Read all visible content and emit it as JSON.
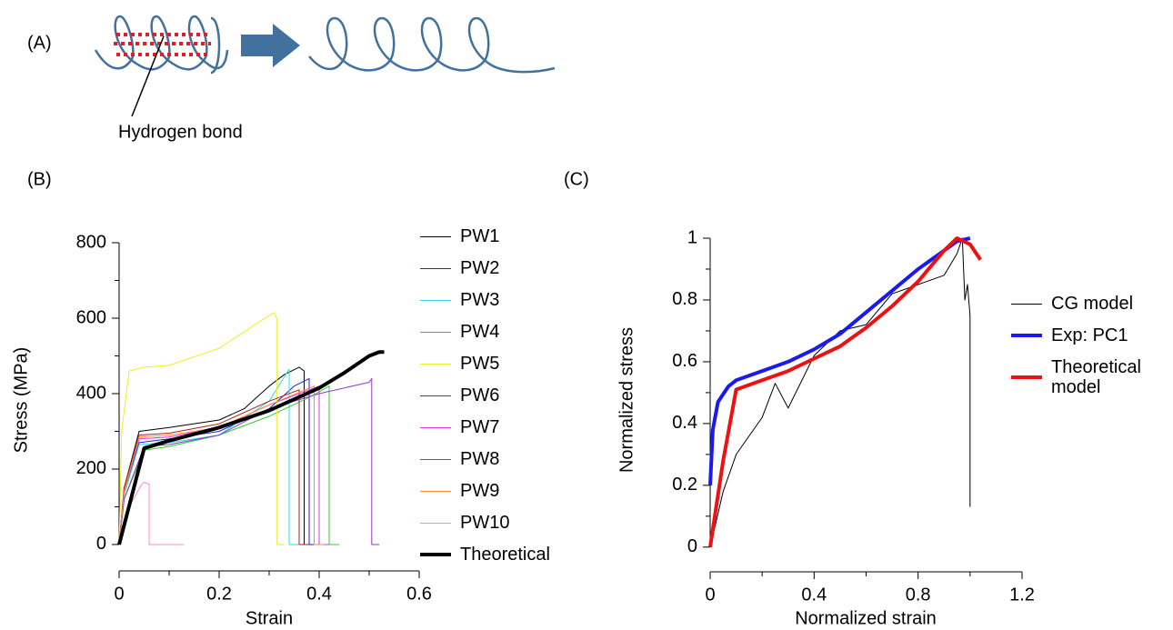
{
  "diagram": {
    "label": "(A)",
    "annotation": "Hydrogen bond"
  },
  "chart_data": [
    {
      "type": "line",
      "label": "(B)",
      "x_label": "Strain",
      "y_label": "Stress (MPa)",
      "xlim": [
        0,
        0.6
      ],
      "xticks": [
        0,
        0.2,
        0.4,
        0.6
      ],
      "ylim": [
        -70,
        800
      ],
      "yticks": [
        0,
        200,
        400,
        600,
        800
      ],
      "series": [
        {
          "name": "PW1",
          "color": "#000000",
          "line_width": 1,
          "x": [
            0,
            0.01,
            0.04,
            0.1,
            0.2,
            0.25,
            0.3,
            0.33,
            0.36,
            0.37,
            0.37,
            0.4
          ],
          "values": [
            0,
            150,
            300,
            310,
            330,
            360,
            420,
            450,
            470,
            460,
            0,
            0
          ]
        },
        {
          "name": "PW2",
          "color": "#2222dd",
          "line_width": 1,
          "x": [
            0,
            0.01,
            0.04,
            0.1,
            0.2,
            0.3,
            0.35,
            0.38,
            0.38,
            0.41
          ],
          "values": [
            0,
            140,
            270,
            280,
            300,
            360,
            420,
            440,
            0,
            0
          ]
        },
        {
          "name": "PW3",
          "color": "#33dddd",
          "line_width": 1,
          "x": [
            0,
            0.01,
            0.04,
            0.1,
            0.2,
            0.3,
            0.34,
            0.34,
            0.36
          ],
          "values": [
            0,
            130,
            265,
            270,
            290,
            380,
            465,
            0,
            0
          ]
        },
        {
          "name": "PW4",
          "color": "#33cc33",
          "line_width": 1,
          "x": [
            0,
            0.01,
            0.05,
            0.1,
            0.2,
            0.3,
            0.38,
            0.42,
            0.42,
            0.44
          ],
          "values": [
            0,
            120,
            250,
            260,
            290,
            340,
            390,
            420,
            0,
            0
          ]
        },
        {
          "name": "PW5",
          "color": "#eeee22",
          "line_width": 1,
          "x": [
            0,
            0.005,
            0.02,
            0.05,
            0.1,
            0.2,
            0.28,
            0.31,
            0.315,
            0.315,
            0.33
          ],
          "values": [
            0,
            300,
            460,
            470,
            475,
            520,
            590,
            615,
            600,
            0,
            0
          ]
        },
        {
          "name": "PW6",
          "color": "#aa2222",
          "line_width": 1,
          "x": [
            0,
            0.01,
            0.04,
            0.1,
            0.2,
            0.3,
            0.36,
            0.36,
            0.38
          ],
          "values": [
            0,
            150,
            290,
            295,
            320,
            380,
            410,
            0,
            0
          ]
        },
        {
          "name": "PW7",
          "color": "#dd33dd",
          "line_width": 1,
          "x": [
            0,
            0.01,
            0.04,
            0.1,
            0.2,
            0.3,
            0.4,
            0.4,
            0.42
          ],
          "values": [
            0,
            140,
            280,
            285,
            310,
            370,
            420,
            0,
            0
          ]
        },
        {
          "name": "PW8",
          "color": "#9933cc",
          "line_width": 1,
          "x": [
            0,
            0.01,
            0.05,
            0.1,
            0.2,
            0.3,
            0.4,
            0.5,
            0.505,
            0.505,
            0.52
          ],
          "values": [
            0,
            120,
            260,
            265,
            290,
            360,
            400,
            430,
            440,
            0,
            0
          ]
        },
        {
          "name": "PW9",
          "color": "#ff8833",
          "line_width": 1,
          "x": [
            0,
            0.01,
            0.04,
            0.1,
            0.2,
            0.3,
            0.39,
            0.39,
            0.41
          ],
          "values": [
            0,
            140,
            285,
            290,
            310,
            370,
            420,
            0,
            0
          ]
        },
        {
          "name": "PW10",
          "color": "#ff88cc",
          "line_width": 1,
          "x": [
            0,
            0.02,
            0.045,
            0.05,
            0.06,
            0.06,
            0.13
          ],
          "values": [
            0,
            100,
            160,
            165,
            160,
            0,
            0
          ]
        },
        {
          "name": "Theoretical",
          "color": "#000000",
          "line_width": 4,
          "x": [
            0,
            0.05,
            0.1,
            0.2,
            0.3,
            0.4,
            0.45,
            0.5,
            0.52,
            0.53
          ],
          "values": [
            0,
            255,
            275,
            310,
            355,
            415,
            455,
            500,
            510,
            510
          ]
        }
      ]
    },
    {
      "type": "line",
      "label": "(C)",
      "x_label": "Normalized strain",
      "y_label": "Normalized stress",
      "xlim": [
        0,
        1.2
      ],
      "xticks": [
        0,
        0.4,
        0.8,
        1.2
      ],
      "ylim": [
        -0.08,
        1
      ],
      "yticks": [
        0,
        0.2,
        0.4,
        0.6,
        0.8,
        1
      ],
      "series": [
        {
          "name": "CG model",
          "color": "#000000",
          "line_width": 1,
          "x": [
            0,
            0.05,
            0.1,
            0.2,
            0.25,
            0.3,
            0.4,
            0.5,
            0.6,
            0.7,
            0.8,
            0.9,
            0.95,
            0.97,
            0.98,
            0.99,
            1.0,
            1.0
          ],
          "values": [
            0,
            0.18,
            0.3,
            0.42,
            0.53,
            0.45,
            0.62,
            0.7,
            0.72,
            0.82,
            0.85,
            0.88,
            0.95,
            1,
            0.8,
            0.85,
            0.75,
            0.13
          ]
        },
        {
          "name": "Exp: PC1",
          "color": "#1a1aee",
          "line_width": 4,
          "x": [
            0,
            0.01,
            0.03,
            0.07,
            0.1,
            0.2,
            0.3,
            0.4,
            0.5,
            0.6,
            0.7,
            0.8,
            0.9,
            0.95,
            1.0
          ],
          "values": [
            0.2,
            0.38,
            0.47,
            0.52,
            0.54,
            0.57,
            0.6,
            0.64,
            0.69,
            0.76,
            0.83,
            0.9,
            0.96,
            0.99,
            1
          ]
        },
        {
          "name": "Theoretical model",
          "color": "#ee1111",
          "line_width": 4,
          "x": [
            0,
            0.05,
            0.1,
            0.2,
            0.3,
            0.4,
            0.5,
            0.6,
            0.7,
            0.8,
            0.9,
            0.95,
            1.0,
            1.04
          ],
          "values": [
            0,
            0.28,
            0.51,
            0.54,
            0.57,
            0.61,
            0.65,
            0.71,
            0.78,
            0.86,
            0.96,
            1,
            0.98,
            0.93
          ]
        }
      ]
    }
  ]
}
